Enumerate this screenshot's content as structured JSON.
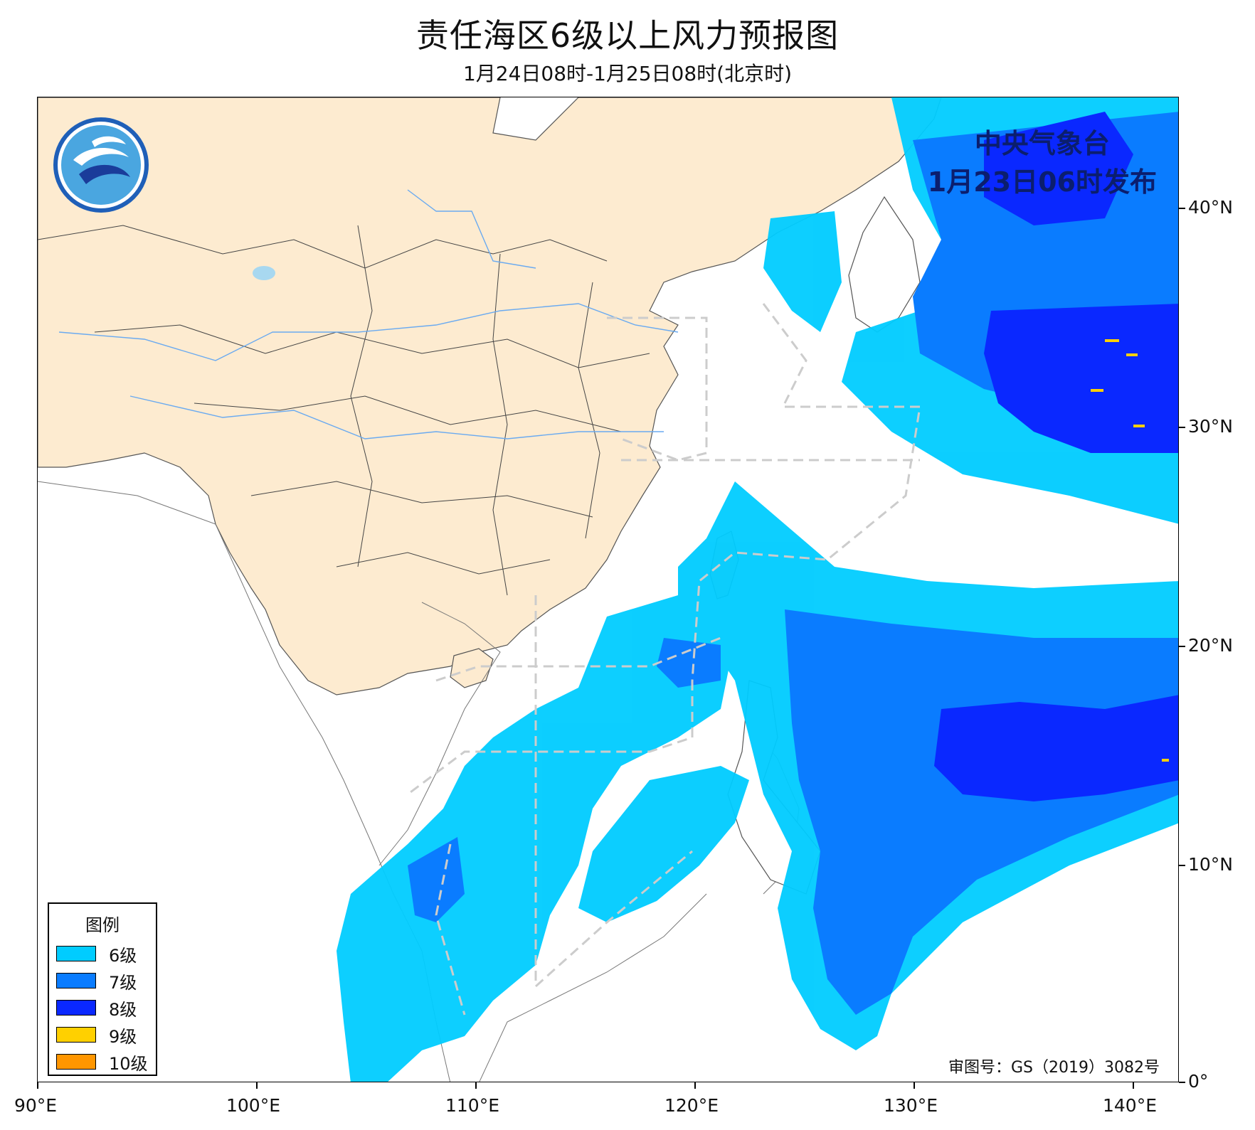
{
  "title": "责任海区6级以上风力预报图",
  "subtitle": "1月24日08时-1月25日08时(北京时)",
  "issuer": {
    "line1": "中央气象台",
    "line2": "1月23日06时发布"
  },
  "approval_number": "审图号：GS（2019）3082号",
  "legend": {
    "title": "图例",
    "items": [
      {
        "label": "6级",
        "color": "#00ccff"
      },
      {
        "label": "7级",
        "color": "#0a7cff"
      },
      {
        "label": "8级",
        "color": "#0a28ff"
      },
      {
        "label": "9级",
        "color": "#ffd000"
      },
      {
        "label": "10级",
        "color": "#ff9600"
      }
    ]
  },
  "axes": {
    "lon_ticks": [
      "90°E",
      "100°E",
      "110°E",
      "120°E",
      "130°E",
      "140°E"
    ],
    "lat_ticks": [
      "40°N",
      "30°N",
      "20°N",
      "10°N",
      "0°"
    ]
  },
  "colors": {
    "land_china": "#fdebd0",
    "ocean": "#ffffff",
    "border_dashed": "#cccccc"
  }
}
